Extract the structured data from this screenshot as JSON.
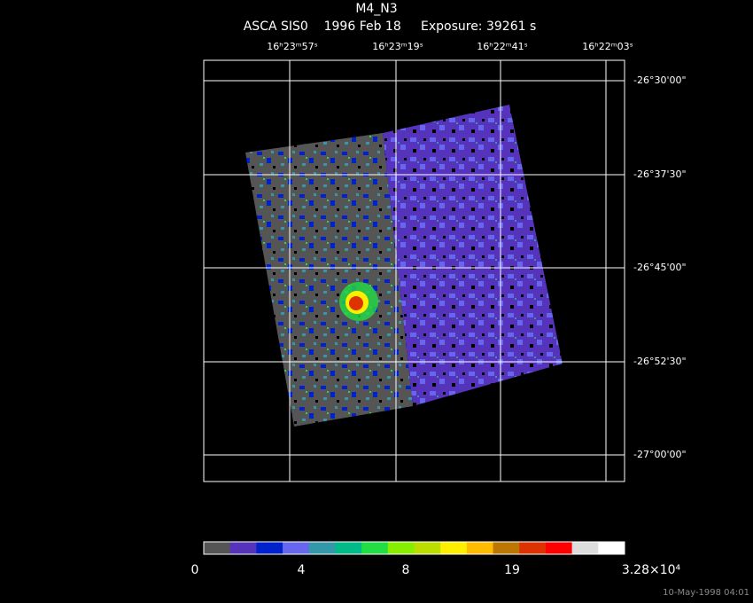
{
  "header": {
    "title": "M4_N3",
    "subtitle": "ASCA SIS0    1996 Feb 18     Exposure: 39261 s"
  },
  "axes": {
    "ra_labels": [
      "16ʰ23ᵐ57ˢ",
      "16ʰ23ᵐ19ˢ",
      "16ʰ22ᵐ41ˢ",
      "16ʰ22ᵐ03ˢ"
    ],
    "dec_labels": [
      "-26°30'00\"",
      "-26°37'30\"",
      "-26°45'00\"",
      "-26°52'30\"",
      "-27°00'00\""
    ]
  },
  "colorbar": {
    "colors": [
      "#555555",
      "#5533bb",
      "#0022cc",
      "#6666ee",
      "#3399aa",
      "#00bb88",
      "#22dd44",
      "#88ee00",
      "#bbdd00",
      "#ffee00",
      "#ffbb00",
      "#bb7700",
      "#dd3300",
      "#ff0000",
      "#dddddd",
      "#ffffff"
    ],
    "labels": [
      "0",
      "4",
      "8",
      "19",
      "3.28×10⁴"
    ]
  },
  "footer": {
    "timestamp": "10-May-1998 04:01"
  }
}
